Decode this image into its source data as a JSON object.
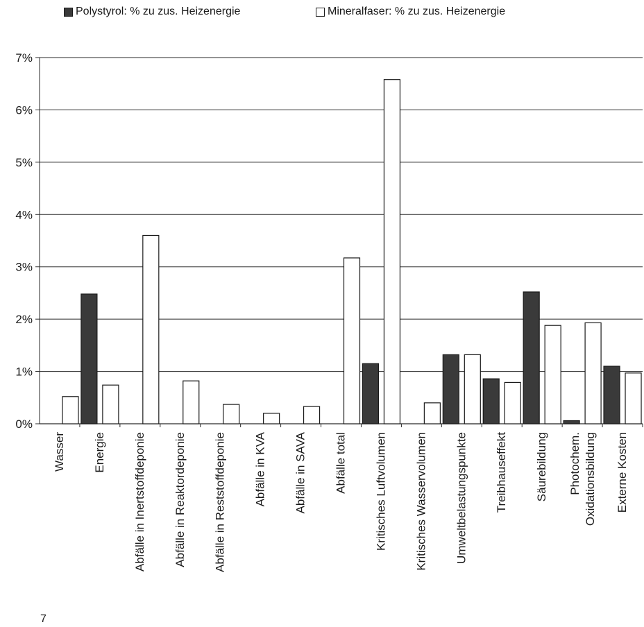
{
  "page_number": "7",
  "chart_data": {
    "type": "bar",
    "title": "",
    "xlabel": "",
    "ylabel": "",
    "ylim": [
      0,
      7
    ],
    "y_ticks": [
      "0%",
      "1%",
      "2%",
      "3%",
      "4%",
      "5%",
      "6%",
      "7%"
    ],
    "grid": true,
    "legend_position": "top",
    "categories": [
      "Wasser",
      "Energie",
      "Abfälle in Inertstoffdeponie",
      "Abfälle in Reaktordeponie",
      "Abfälle in Reststoffdeponie",
      "Abfälle in KVA",
      "Abfälle in SAVA",
      "Abfälle total",
      "Kritisches Luftvolumen",
      "Kritisches Wasservolumen",
      "Umweltbelastungspunkte",
      "Treibhauseffekt",
      "Säurebildung",
      "Photochem. Oxidationsbildung",
      "Externe Kosten"
    ],
    "series": [
      {
        "name": "Polystyrol: % zu zus. Heizenergie",
        "color": "#3a3a3a",
        "values": [
          0,
          2.48,
          0,
          0,
          0,
          0,
          0,
          0,
          1.15,
          0,
          1.32,
          0.86,
          2.52,
          0.06,
          1.1
        ]
      },
      {
        "name": "Mineralfaser: % zu zus. Heizenergie",
        "color": "#ffffff",
        "values": [
          0.52,
          0.74,
          3.6,
          0.82,
          0.37,
          0.2,
          0.33,
          3.17,
          6.58,
          0.4,
          1.32,
          0.79,
          1.88,
          1.93,
          0.97
        ]
      }
    ]
  }
}
